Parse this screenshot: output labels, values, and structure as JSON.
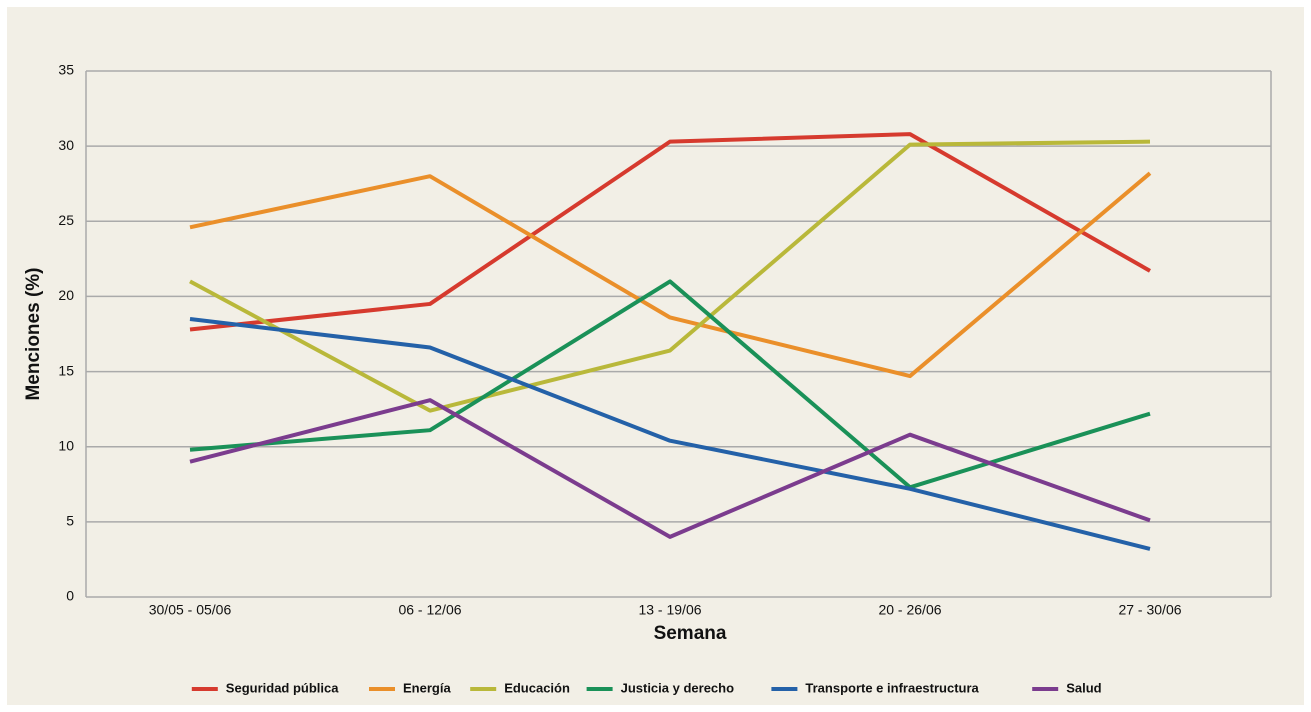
{
  "chart_data": {
    "type": "line",
    "xlabel": "Semana",
    "ylabel": "Menciones (%)",
    "categories": [
      "30/05 - 05/06",
      "06 - 12/06",
      "13 - 19/06",
      "20 - 26/06",
      "27 - 30/06"
    ],
    "series": [
      {
        "name": "Seguridad pública",
        "color": "#d63a2e",
        "values": [
          17.8,
          19.5,
          30.3,
          30.8,
          21.7
        ]
      },
      {
        "name": "Energía",
        "color": "#ea8f2a",
        "values": [
          24.6,
          28.0,
          18.6,
          14.7,
          28.2
        ]
      },
      {
        "name": "Educación",
        "color": "#b9b83a",
        "values": [
          21.0,
          12.4,
          16.4,
          30.1,
          30.3
        ]
      },
      {
        "name": "Justicia y derecho",
        "color": "#1a9158",
        "values": [
          9.8,
          11.1,
          21.0,
          7.3,
          12.2
        ]
      },
      {
        "name": "Transporte e infraestructura",
        "color": "#2461a8",
        "values": [
          18.5,
          16.6,
          10.4,
          7.2,
          3.2
        ]
      },
      {
        "name": "Salud",
        "color": "#7b3c8e",
        "values": [
          9.0,
          13.1,
          4.0,
          10.8,
          5.1
        ]
      }
    ],
    "ylim": [
      0,
      35
    ],
    "yticks": [
      0,
      5,
      10,
      15,
      20,
      25,
      30,
      35
    ],
    "grid": true,
    "legend": "bottom"
  }
}
